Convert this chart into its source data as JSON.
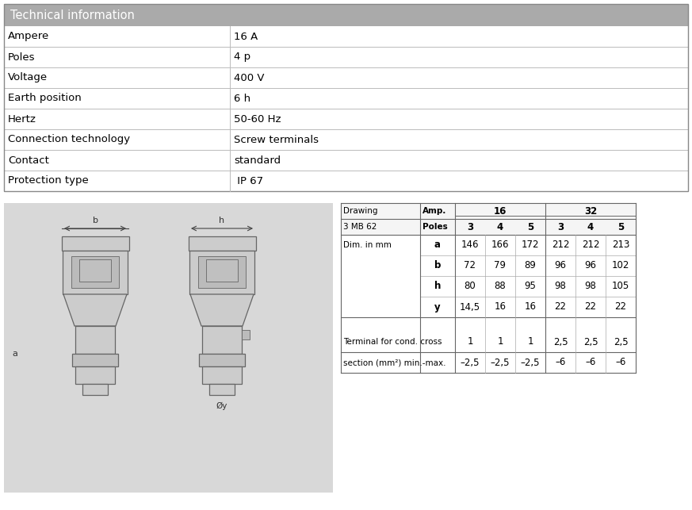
{
  "title": "Technical information",
  "title_bg": "#aaaaaa",
  "title_color": "#ffffff",
  "tech_rows": [
    [
      "Ampere",
      "16 A"
    ],
    [
      "Poles",
      "4 p"
    ],
    [
      "Voltage",
      "400 V"
    ],
    [
      "Earth position",
      "6 h"
    ],
    [
      "Hertz",
      "50-60 Hz"
    ],
    [
      "Connection technology",
      "Screw terminals"
    ],
    [
      "Contact",
      "standard"
    ],
    [
      "Protection type",
      " IP 67"
    ]
  ],
  "dim_label": "Dim. in mm",
  "dim_rows": [
    [
      "a",
      "146",
      "166",
      "172",
      "212",
      "212",
      "213"
    ],
    [
      "b",
      "72",
      "79",
      "89",
      "96",
      "96",
      "102"
    ],
    [
      "h",
      "80",
      "88",
      "95",
      "98",
      "98",
      "105"
    ],
    [
      "y",
      "14,5",
      "16",
      "16",
      "22",
      "22",
      "22"
    ]
  ],
  "terminal_label": "Terminal for cond. cross",
  "terminal_values": [
    "1",
    "1",
    "1",
    "2,5",
    "2,5",
    "2,5"
  ],
  "section_label": "section (mm²) min.-max.",
  "section_values": [
    "–2,5",
    "–2,5",
    "–2,5",
    "–6",
    "–6",
    "–6"
  ],
  "bg_color": "#ffffff",
  "img_bg": "#d8d8d8",
  "top_table_border": "#888888",
  "row_divider": "#cccccc"
}
